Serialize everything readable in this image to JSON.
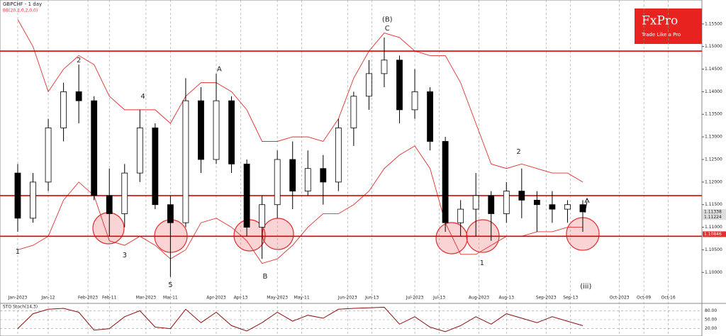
{
  "chart_data": {
    "type": "candlestick",
    "title": "GBPCHF - 1 day",
    "subtitle": "BB(20,2,0,2,0,0)",
    "x": [
      0,
      5,
      10,
      15,
      20,
      25,
      30,
      35,
      40,
      45,
      50,
      55,
      60,
      65,
      70,
      75,
      80,
      85,
      90,
      95,
      100,
      105,
      110,
      115,
      120,
      125,
      130,
      135,
      140,
      145,
      150,
      155,
      160,
      165,
      170,
      175,
      180,
      185
    ],
    "open": [
      1.122,
      1.112,
      1.12,
      1.132,
      1.14,
      1.138,
      1.117,
      1.113,
      1.122,
      1.132,
      1.115,
      1.111,
      1.138,
      1.125,
      1.138,
      1.124,
      1.11,
      1.115,
      1.125,
      1.118,
      1.123,
      1.12,
      1.132,
      1.139,
      1.144,
      1.147,
      1.136,
      1.14,
      1.129,
      1.111,
      1.114,
      1.117,
      1.113,
      1.118,
      1.116,
      1.115,
      1.114,
      1.115
    ],
    "high": [
      1.124,
      1.122,
      1.134,
      1.142,
      1.146,
      1.139,
      1.123,
      1.124,
      1.136,
      1.133,
      1.117,
      1.143,
      1.141,
      1.144,
      1.139,
      1.125,
      1.117,
      1.127,
      1.129,
      1.127,
      1.126,
      1.134,
      1.14,
      1.147,
      1.152,
      1.148,
      1.145,
      1.141,
      1.13,
      1.116,
      1.122,
      1.118,
      1.12,
      1.123,
      1.118,
      1.118,
      1.116,
      1.116
    ],
    "low": [
      1.109,
      1.111,
      1.118,
      1.129,
      1.133,
      1.116,
      1.108,
      1.11,
      1.12,
      1.114,
      1.099,
      1.11,
      1.122,
      1.124,
      1.122,
      1.108,
      1.103,
      1.112,
      1.114,
      1.117,
      1.115,
      1.118,
      1.128,
      1.136,
      1.141,
      1.133,
      1.134,
      1.127,
      1.109,
      1.108,
      1.108,
      1.107,
      1.111,
      1.112,
      1.109,
      1.111,
      1.111,
      1.109
    ],
    "close": [
      1.112,
      1.12,
      1.132,
      1.14,
      1.138,
      1.117,
      1.113,
      1.122,
      1.132,
      1.115,
      1.111,
      1.138,
      1.125,
      1.138,
      1.124,
      1.11,
      1.115,
      1.125,
      1.118,
      1.123,
      1.12,
      1.132,
      1.139,
      1.144,
      1.147,
      1.136,
      1.14,
      1.129,
      1.111,
      1.114,
      1.117,
      1.113,
      1.118,
      1.116,
      1.115,
      1.114,
      1.115,
      1.1134
    ],
    "bands": [
      {
        "color": "#e03030",
        "values": [
          1.156,
          1.15,
          1.14,
          1.145,
          1.148,
          1.146,
          1.139,
          1.136,
          1.136,
          1.136,
          1.133,
          1.139,
          1.142,
          1.142,
          1.14,
          1.136,
          1.129,
          1.129,
          1.13,
          1.13,
          1.129,
          1.134,
          1.143,
          1.149,
          1.153,
          1.152,
          1.149,
          1.148,
          1.148,
          1.142,
          1.133,
          1.124,
          1.123,
          1.124,
          1.123,
          1.122,
          1.122,
          1.12
        ]
      },
      {
        "color": "#e03030",
        "values": [
          1.105,
          1.106,
          1.108,
          1.116,
          1.12,
          1.117,
          1.107,
          1.106,
          1.108,
          1.106,
          1.103,
          1.105,
          1.111,
          1.112,
          1.11,
          1.107,
          1.102,
          1.103,
          1.106,
          1.11,
          1.113,
          1.113,
          1.115,
          1.118,
          1.123,
          1.126,
          1.128,
          1.123,
          1.111,
          1.104,
          1.104,
          1.106,
          1.108,
          1.108,
          1.109,
          1.109,
          1.11,
          1.11
        ]
      }
    ],
    "levels": [
      1.149,
      1.117,
      1.108
    ],
    "level_color": "#e00000",
    "price_labels": [
      {
        "value": 1.11338,
        "label": "1.11338"
      },
      {
        "value": 1.11224,
        "label": "1.11224"
      },
      {
        "value": 1.10846,
        "label": "1.10846"
      }
    ],
    "annotations": [
      {
        "text": "2",
        "x": 20,
        "y": 1.147
      },
      {
        "text": "4",
        "x": 41,
        "y": 1.139
      },
      {
        "text": "A",
        "x": 66,
        "y": 1.145
      },
      {
        "text": "(B)",
        "x": 121,
        "y": 1.156
      },
      {
        "text": "C",
        "x": 121,
        "y": 1.154
      },
      {
        "text": "2",
        "x": 164,
        "y": 1.1267
      },
      {
        "text": "1",
        "x": 0,
        "y": 1.1046
      },
      {
        "text": "3",
        "x": 35,
        "y": 1.1038
      },
      {
        "text": "5",
        "x": 50,
        "y": 1.0972
      },
      {
        "text": "B",
        "x": 81,
        "y": 1.0991
      },
      {
        "text": "1",
        "x": 152,
        "y": 1.1021
      },
      {
        "text": "(iii)",
        "x": 186,
        "y": 1.0969
      }
    ],
    "xlim": [
      -5.8,
      224
    ],
    "ylim": [
      1.0955,
      1.1603
    ],
    "yticks": [
      {
        "value": 1.1,
        "label": "1.10000"
      },
      {
        "value": 1.105,
        "label": "1.10500"
      },
      {
        "value": 1.11,
        "label": "1.11000"
      },
      {
        "value": 1.115,
        "label": "1.11500"
      },
      {
        "value": 1.12,
        "label": "1.12000"
      },
      {
        "value": 1.125,
        "label": "1.12500"
      },
      {
        "value": 1.13,
        "label": "1.13000"
      },
      {
        "value": 1.135,
        "label": "1.13500"
      },
      {
        "value": 1.14,
        "label": "1.14000"
      },
      {
        "value": 1.145,
        "label": "1.14500"
      },
      {
        "value": 1.15,
        "label": "1.15000"
      },
      {
        "value": 1.155,
        "label": "1.15500"
      }
    ],
    "xticks": [
      {
        "value": 0,
        "label": "Jan-2023"
      },
      {
        "value": 10,
        "label": "Jan-12"
      },
      {
        "value": 23,
        "label": "Feb-2023"
      },
      {
        "value": 30,
        "label": "Feb-11"
      },
      {
        "value": 42,
        "label": "Mar-2023"
      },
      {
        "value": 50,
        "label": "Mar-11"
      },
      {
        "value": 65,
        "label": "Apr-2023"
      },
      {
        "value": 73,
        "label": "Apr-13"
      },
      {
        "value": 85,
        "label": "May-2023"
      },
      {
        "value": 93,
        "label": "May-11"
      },
      {
        "value": 108,
        "label": "Jun-2023"
      },
      {
        "value": 116,
        "label": "Jun-13"
      },
      {
        "value": 130,
        "label": "Jul-2023"
      },
      {
        "value": 138,
        "label": "Jul-13"
      },
      {
        "value": 151,
        "label": "Aug-2023"
      },
      {
        "value": 160,
        "label": "Aug-13"
      },
      {
        "value": 173,
        "label": "Sep-2023"
      },
      {
        "value": 181,
        "label": "Sep-13"
      },
      {
        "value": 197,
        "label": "Oct-2023"
      },
      {
        "value": 205,
        "label": "Oct-09"
      },
      {
        "value": 213,
        "label": "Oct-16"
      }
    ],
    "grid": true,
    "oscillator": {
      "title": "STO Stoch(14,3)",
      "color": "#8b1010",
      "ylim": [
        0,
        100
      ],
      "yticks": [
        {
          "value": 80,
          "label": "80.00"
        },
        {
          "value": 50,
          "label": "50.00"
        },
        {
          "value": 20,
          "label": "20.00"
        }
      ],
      "values": [
        20,
        70,
        85,
        88,
        75,
        15,
        20,
        60,
        80,
        25,
        20,
        85,
        40,
        75,
        30,
        12,
        40,
        75,
        45,
        65,
        55,
        85,
        88,
        90,
        92,
        35,
        60,
        25,
        10,
        30,
        60,
        35,
        70,
        55,
        40,
        60,
        45,
        30
      ]
    },
    "logo": {
      "name": "FxPro",
      "tagline": "Trade Like a Pro"
    }
  }
}
